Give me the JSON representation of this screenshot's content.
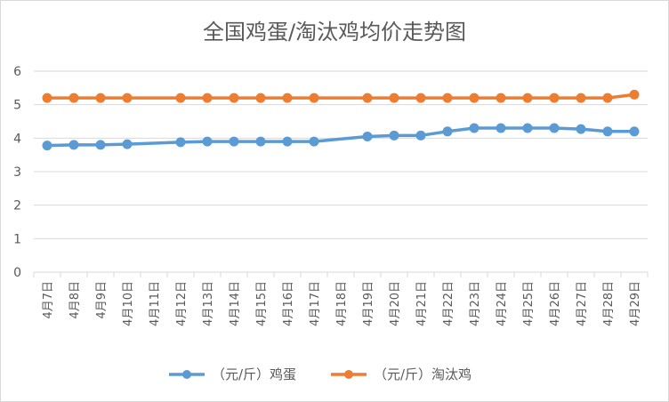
{
  "chart_data": {
    "type": "line",
    "title": "全国鸡蛋/淘汰鸡均价走势图",
    "categories": [
      "4月7日",
      "4月8日",
      "4月9日",
      "4月10日",
      "4月11日",
      "4月12日",
      "4月13日",
      "4月14日",
      "4月15日",
      "4月16日",
      "4月17日",
      "4月18日",
      "4月19日",
      "4月20日",
      "4月21日",
      "4月22日",
      "4月23日",
      "4月24日",
      "4月25日",
      "4月26日",
      "4月27日",
      "4月28日",
      "4月29日"
    ],
    "ylim": [
      0,
      6
    ],
    "yticks": [
      0,
      1,
      2,
      3,
      4,
      5,
      6
    ],
    "grid": true,
    "legend": "bottom",
    "series": [
      {
        "name": "（元/斤）鸡蛋",
        "color": "#5B9BD5",
        "values": [
          3.78,
          3.8,
          3.8,
          3.82,
          null,
          3.88,
          3.9,
          3.9,
          3.9,
          3.9,
          3.9,
          null,
          4.05,
          4.08,
          4.08,
          4.2,
          4.3,
          4.3,
          4.3,
          4.3,
          4.27,
          4.2,
          4.2
        ]
      },
      {
        "name": "（元/斤）淘汰鸡",
        "color": "#ED7D31",
        "values": [
          5.2,
          5.2,
          5.2,
          5.2,
          null,
          5.2,
          5.2,
          5.2,
          5.2,
          5.2,
          5.2,
          null,
          5.2,
          5.2,
          5.2,
          5.2,
          5.2,
          5.2,
          5.2,
          5.2,
          5.2,
          5.2,
          5.3
        ]
      }
    ]
  }
}
